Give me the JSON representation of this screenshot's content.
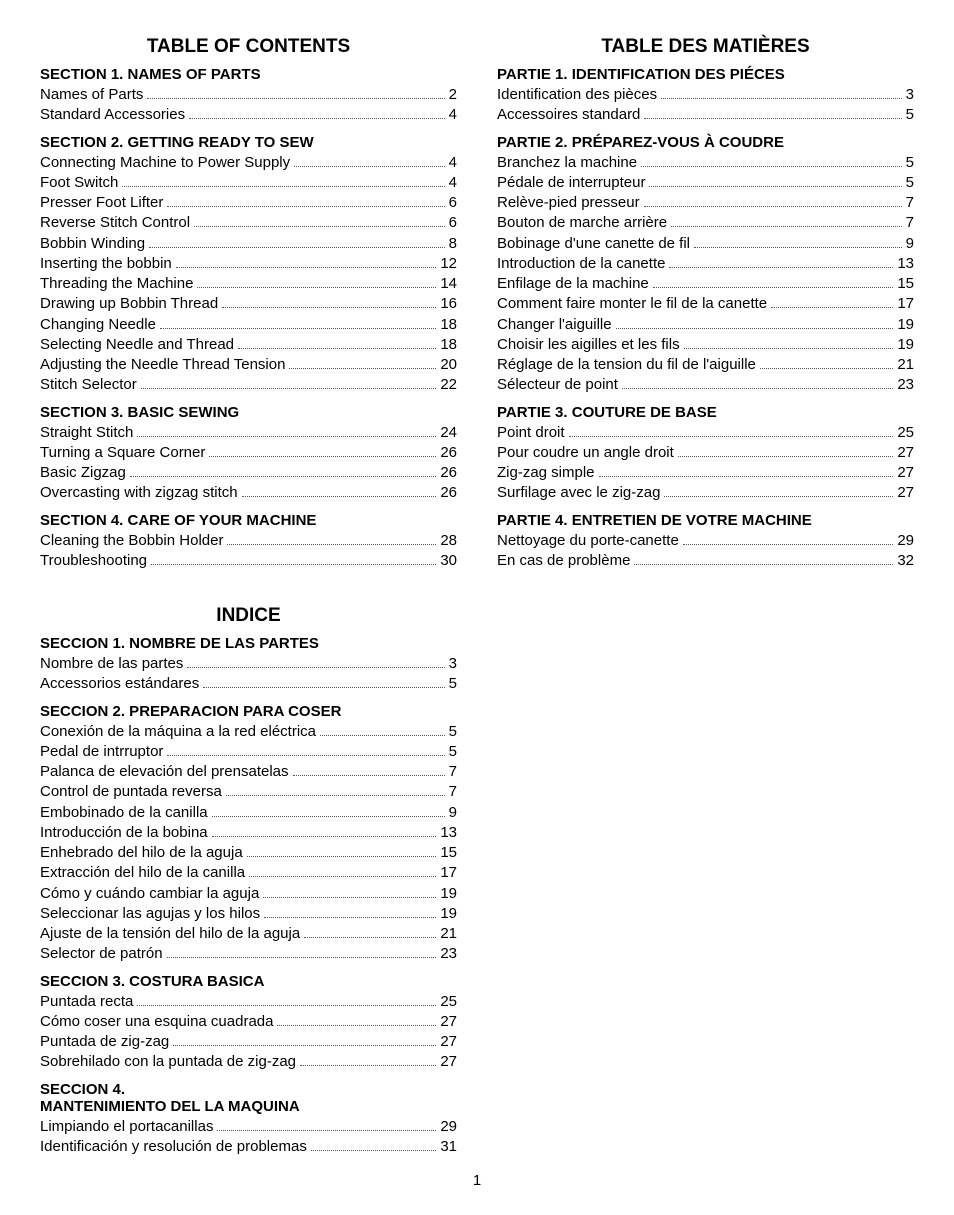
{
  "pageNumber": "1",
  "left": {
    "title": "TABLE OF CONTENTS",
    "sections": [
      {
        "heading": "SECTION 1. NAMES OF PARTS",
        "items": [
          {
            "label": "Names of Parts",
            "page": "2"
          },
          {
            "label": "Standard Accessories",
            "page": "4"
          }
        ]
      },
      {
        "heading": "SECTION 2. GETTING READY TO SEW",
        "items": [
          {
            "label": "Connecting Machine to Power Supply",
            "page": "4"
          },
          {
            "label": "Foot Switch",
            "page": "4"
          },
          {
            "label": "Presser Foot Lifter",
            "page": "6"
          },
          {
            "label": "Reverse Stitch Control",
            "page": "6"
          },
          {
            "label": "Bobbin Winding",
            "page": "8"
          },
          {
            "label": "Inserting the bobbin",
            "page": "12"
          },
          {
            "label": "Threading the Machine",
            "page": "14"
          },
          {
            "label": "Drawing up Bobbin Thread",
            "page": "16"
          },
          {
            "label": "Changing Needle",
            "page": "18"
          },
          {
            "label": "Selecting Needle and Thread",
            "page": "18"
          },
          {
            "label": "Adjusting the Needle Thread Tension",
            "page": "20"
          },
          {
            "label": "Stitch Selector",
            "page": "22"
          }
        ]
      },
      {
        "heading": "SECTION 3. BASIC SEWING",
        "items": [
          {
            "label": "Straight Stitch",
            "page": "24"
          },
          {
            "label": "Turning a Square Corner",
            "page": "26"
          },
          {
            "label": "Basic Zigzag",
            "page": "26"
          },
          {
            "label": "Overcasting with zigzag stitch",
            "page": "26"
          }
        ]
      },
      {
        "heading": "SECTION 4. CARE OF YOUR MACHINE",
        "items": [
          {
            "label": "Cleaning the Bobbin Holder",
            "page": "28"
          },
          {
            "label": "Troubleshooting",
            "page": "30"
          }
        ]
      }
    ],
    "indice": {
      "title": "INDICE",
      "sections": [
        {
          "heading": "SECCION 1. NOMBRE DE LAS PARTES",
          "items": [
            {
              "label": "Nombre de las partes",
              "page": "3"
            },
            {
              "label": "Accessorios estándares",
              "page": "5"
            }
          ]
        },
        {
          "heading": "SECCION 2. PREPARACION PARA COSER",
          "items": [
            {
              "label": "Conexión de la máquina a la red eléctrica",
              "page": "5"
            },
            {
              "label": "Pedal de intrruptor",
              "page": "5"
            },
            {
              "label": "Palanca de elevación del prensatelas",
              "page": "7"
            },
            {
              "label": "Control de puntada reversa",
              "page": "7"
            },
            {
              "label": "Embobinado de la canilla",
              "page": "9"
            },
            {
              "label": "Introducción de la bobina",
              "page": "13"
            },
            {
              "label": "Enhebrado del hilo de la aguja",
              "page": "15"
            },
            {
              "label": "Extracción del hilo de la canilla",
              "page": "17"
            },
            {
              "label": "Cómo y cuándo cambiar la aguja",
              "page": "19"
            },
            {
              "label": "Seleccionar las agujas y los hilos",
              "page": "19"
            },
            {
              "label": "Ajuste de la tensión del hilo de la aguja",
              "page": "21"
            },
            {
              "label": "Selector de patrón",
              "page": "23"
            }
          ]
        },
        {
          "heading": "SECCION 3. COSTURA BASICA",
          "items": [
            {
              "label": "Puntada recta",
              "page": "25"
            },
            {
              "label": "Cómo coser una esquina cuadrada",
              "page": "27"
            },
            {
              "label": "Puntada de zig-zag",
              "page": "27"
            },
            {
              "label": "Sobrehilado con la puntada de zig-zag",
              "page": "27"
            }
          ]
        },
        {
          "heading": "SECCION 4.\nMANTENIMIENTO DEL LA MAQUINA",
          "items": [
            {
              "label": "Limpiando el portacanillas",
              "page": "29"
            },
            {
              "label": "Identificación y resolución de problemas",
              "page": "31"
            }
          ]
        }
      ]
    }
  },
  "right": {
    "title": "TABLE DES MATIÈRES",
    "sections": [
      {
        "heading": "PARTIE 1. IDENTIFICATION DES PIÉCES",
        "items": [
          {
            "label": "Identification des pièces",
            "page": "3"
          },
          {
            "label": "Accessoires standard",
            "page": "5"
          }
        ]
      },
      {
        "heading": "PARTIE 2. PRÉPAREZ-VOUS À COUDRE",
        "items": [
          {
            "label": "Branchez la machine",
            "page": "5"
          },
          {
            "label": "Pédale de interrupteur",
            "page": "5"
          },
          {
            "label": "Relève-pied presseur",
            "page": "7"
          },
          {
            "label": "Bouton de marche arrière",
            "page": "7"
          },
          {
            "label": "Bobinage d'une canette de fil",
            "page": "9"
          },
          {
            "label": "Introduction de la canette",
            "page": "13"
          },
          {
            "label": "Enfilage de la machine",
            "page": "15"
          },
          {
            "label": "Comment faire monter le fil de la canette",
            "page": "17"
          },
          {
            "label": "Changer l'aiguille",
            "page": "19"
          },
          {
            "label": "Choisir les aigilles et les fils",
            "page": "19"
          },
          {
            "label": "Réglage de la tension du fil de l'aiguille",
            "page": "21"
          },
          {
            "label": "Sélecteur de point",
            "page": "23"
          }
        ]
      },
      {
        "heading": "PARTIE 3. COUTURE DE BASE",
        "items": [
          {
            "label": "Point droit",
            "page": "25"
          },
          {
            "label": "Pour coudre un angle droit",
            "page": "27"
          },
          {
            "label": "Zig-zag simple",
            "page": "27"
          },
          {
            "label": "Surfilage avec le zig-zag",
            "page": "27"
          }
        ]
      },
      {
        "heading": "PARTIE 4. ENTRETIEN DE VOTRE MACHINE",
        "items": [
          {
            "label": "Nettoyage du porte-canette",
            "page": "29"
          },
          {
            "label": "En cas de problème",
            "page": "32"
          }
        ]
      }
    ]
  }
}
